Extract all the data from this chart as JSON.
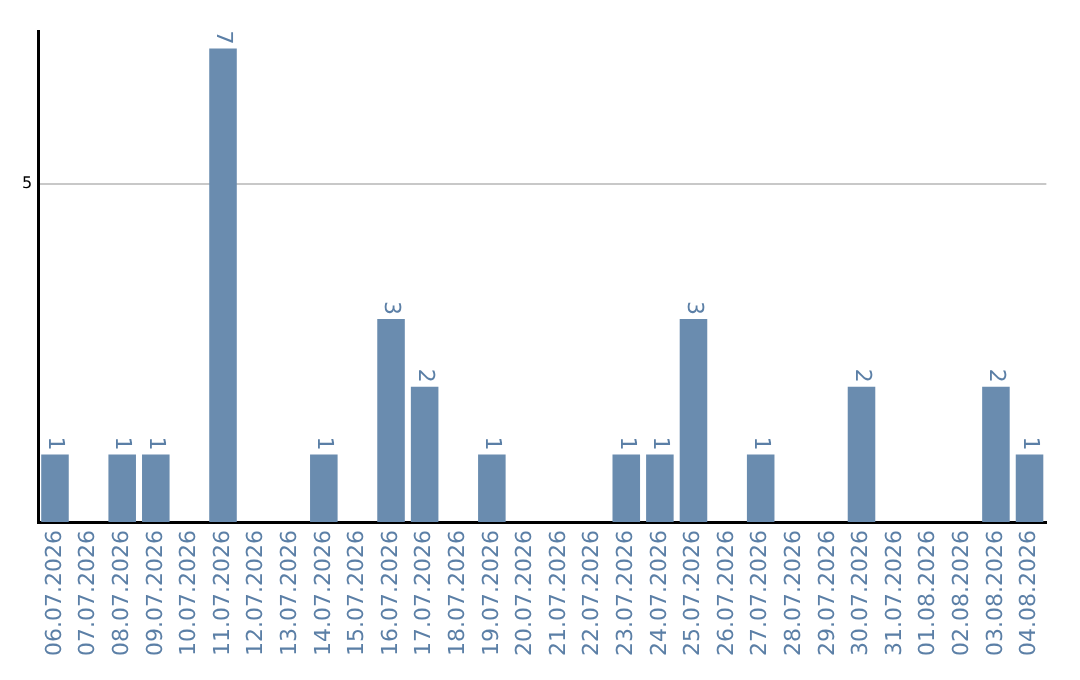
{
  "chart_data": {
    "type": "bar",
    "categories": [
      "06.07.2026",
      "07.07.2026",
      "08.07.2026",
      "09.07.2026",
      "10.07.2026",
      "11.07.2026",
      "12.07.2026",
      "13.07.2026",
      "14.07.2026",
      "15.07.2026",
      "16.07.2026",
      "17.07.2026",
      "18.07.2026",
      "19.07.2026",
      "20.07.2026",
      "21.07.2026",
      "22.07.2026",
      "23.07.2026",
      "24.07.2026",
      "25.07.2026",
      "26.07.2026",
      "27.07.2026",
      "28.07.2026",
      "29.07.2026",
      "30.07.2026",
      "31.07.2026",
      "01.08.2026",
      "02.08.2026",
      "03.08.2026",
      "04.08.2026"
    ],
    "values": [
      1,
      0,
      1,
      1,
      0,
      7,
      0,
      0,
      1,
      0,
      3,
      2,
      0,
      1,
      0,
      0,
      0,
      1,
      1,
      3,
      0,
      1,
      0,
      0,
      2,
      0,
      0,
      0,
      2,
      1
    ],
    "value_labels": [
      "1",
      null,
      "1",
      "1",
      null,
      "7",
      null,
      null,
      "1",
      null,
      "3",
      "2",
      null,
      "1",
      null,
      null,
      null,
      "1",
      "1",
      "3",
      null,
      "1",
      null,
      null,
      "2",
      null,
      null,
      null,
      "2",
      "1"
    ],
    "color": "#6a8caf",
    "ylim": [
      0,
      7.25
    ],
    "yticks": [
      5
    ],
    "grid": "y",
    "legend": false
  }
}
